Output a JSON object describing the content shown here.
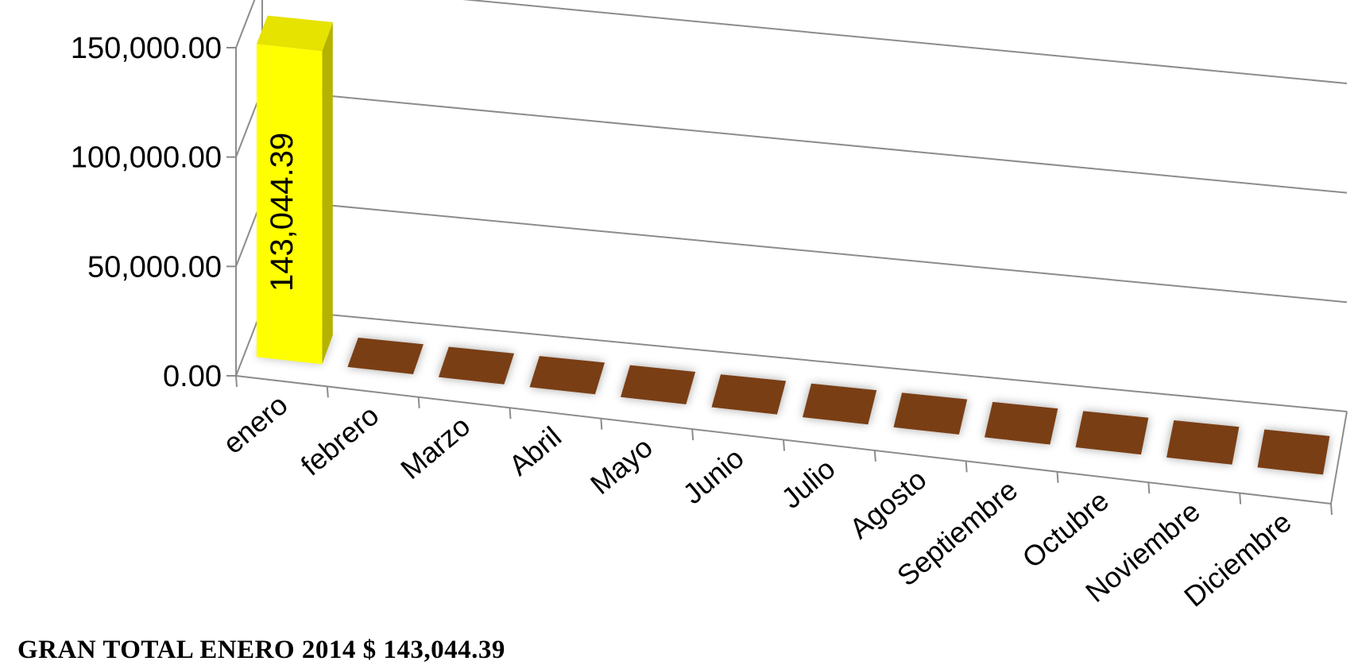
{
  "footer_text": "GRAN TOTAL  ENERO 2014 $ 143,044.39",
  "chart_data": {
    "type": "bar",
    "style": "3d-column",
    "title": "",
    "xlabel": "",
    "ylabel": "",
    "ylim": [
      0,
      150000
    ],
    "yticks": [
      "0.00",
      "50,000.00",
      "100,000.00",
      "150,000.00"
    ],
    "ytick_values": [
      0,
      50000,
      100000,
      150000
    ],
    "grid": true,
    "legend": "none",
    "categories": [
      "enero",
      "febrero",
      "Marzo",
      "Abril",
      "Mayo",
      "Junio",
      "Julio",
      "Agosto",
      "Septiembre",
      "Octubre",
      "Noviembre",
      "Diciembre"
    ],
    "values": [
      143044.39,
      0,
      0,
      0,
      0,
      0,
      0,
      0,
      0,
      0,
      0,
      0
    ],
    "data_labels": [
      "143,044.39"
    ],
    "colors": {
      "highlight_bar": "#ffff00",
      "highlight_bar_side": "#b5b200",
      "zero_bar": "#7a3e14",
      "grid": "#8c8c8c"
    }
  }
}
